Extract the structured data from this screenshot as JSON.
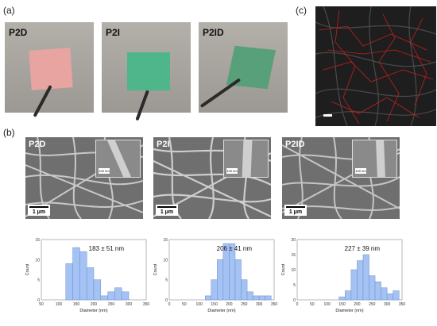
{
  "panels": {
    "a": "(a)",
    "b": "(b)",
    "c": "(c)"
  },
  "photos": [
    {
      "label": "P2D",
      "swatch_color": "#e8a4a0"
    },
    {
      "label": "P2I",
      "swatch_color": "#4fb58a"
    },
    {
      "label": "P2ID",
      "swatch_color": "#58a07a"
    }
  ],
  "sem": [
    {
      "label": "P2D",
      "scale": "1 μm",
      "inset_scale": "100 nm"
    },
    {
      "label": "P2I",
      "scale": "1 μm",
      "inset_scale": "100 nm"
    },
    {
      "label": "P2ID",
      "scale": "1 μm",
      "inset_scale": "100 nm"
    }
  ],
  "chart_data": [
    {
      "type": "bar",
      "annotation": "183 ± 51 nm",
      "xlabel": "Diameter (nm)",
      "ylabel": "Count",
      "xlim": [
        50,
        350
      ],
      "ylim": [
        0,
        15
      ],
      "xticks": [
        50,
        100,
        150,
        200,
        250,
        300,
        350
      ],
      "yticks": [
        0,
        5,
        10,
        15
      ],
      "bin_width": 20,
      "bins": [
        {
          "x": 130,
          "count": 9
        },
        {
          "x": 150,
          "count": 13
        },
        {
          "x": 170,
          "count": 12
        },
        {
          "x": 190,
          "count": 8
        },
        {
          "x": 210,
          "count": 5
        },
        {
          "x": 230,
          "count": 1
        },
        {
          "x": 250,
          "count": 2
        },
        {
          "x": 270,
          "count": 3
        },
        {
          "x": 290,
          "count": 2
        }
      ],
      "bar_color": "#a4c2f4"
    },
    {
      "type": "bar",
      "annotation": "206 ± 41 nm",
      "xlabel": "Diameter (nm)",
      "ylabel": "Count",
      "xlim": [
        0,
        350
      ],
      "ylim": [
        0,
        15
      ],
      "xticks": [
        0,
        50,
        100,
        150,
        200,
        250,
        300,
        350
      ],
      "yticks": [
        0,
        5,
        10,
        15
      ],
      "bin_width": 20,
      "bins": [
        {
          "x": 130,
          "count": 1
        },
        {
          "x": 150,
          "count": 5
        },
        {
          "x": 170,
          "count": 10
        },
        {
          "x": 190,
          "count": 14
        },
        {
          "x": 210,
          "count": 14
        },
        {
          "x": 230,
          "count": 10
        },
        {
          "x": 250,
          "count": 5
        },
        {
          "x": 270,
          "count": 2
        },
        {
          "x": 290,
          "count": 1
        },
        {
          "x": 310,
          "count": 1
        },
        {
          "x": 330,
          "count": 1
        }
      ],
      "bar_color": "#a4c2f4"
    },
    {
      "type": "bar",
      "annotation": "227 ± 39 nm",
      "xlabel": "Diameter (nm)",
      "ylabel": "Count",
      "xlim": [
        0,
        350
      ],
      "ylim": [
        0,
        20
      ],
      "xticks": [
        0,
        50,
        100,
        150,
        200,
        250,
        300,
        350
      ],
      "yticks": [
        0,
        5,
        10,
        15,
        20
      ],
      "bin_width": 20,
      "bins": [
        {
          "x": 150,
          "count": 1
        },
        {
          "x": 170,
          "count": 3
        },
        {
          "x": 190,
          "count": 10
        },
        {
          "x": 210,
          "count": 13
        },
        {
          "x": 230,
          "count": 15
        },
        {
          "x": 250,
          "count": 8
        },
        {
          "x": 270,
          "count": 6
        },
        {
          "x": 290,
          "count": 4
        },
        {
          "x": 310,
          "count": 2
        },
        {
          "x": 330,
          "count": 3
        }
      ],
      "bar_color": "#a4c2f4"
    }
  ]
}
